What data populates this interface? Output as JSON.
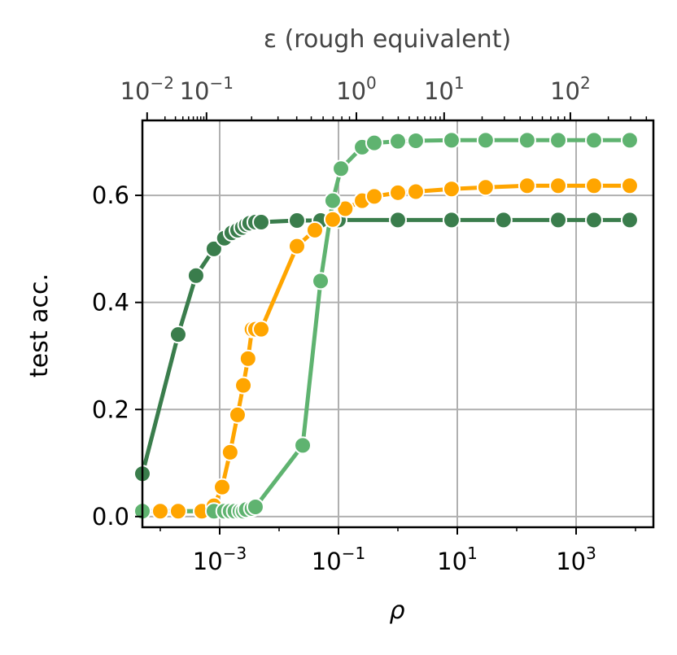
{
  "chart_data": {
    "type": "line",
    "xlabel": "ρ",
    "ylabel": "test acc.",
    "x_scale": "log",
    "xlim": [
      5e-05,
      20000
    ],
    "ylim": [
      -0.02,
      0.74
    ],
    "grid": true,
    "x_ticks": [
      {
        "value": 0.001,
        "base": "10",
        "exp": "−3"
      },
      {
        "value": 0.1,
        "base": "10",
        "exp": "−1"
      },
      {
        "value": 10,
        "base": "10",
        "exp": "1"
      },
      {
        "value": 1000,
        "base": "10",
        "exp": "3"
      }
    ],
    "y_ticks": [
      {
        "value": 0.0,
        "label": "0.0"
      },
      {
        "value": 0.2,
        "label": "0.2"
      },
      {
        "value": 0.4,
        "label": "0.4"
      },
      {
        "value": 0.6,
        "label": "0.6"
      }
    ],
    "top_axis": {
      "label": "ε (rough equivalent)",
      "color": "#444444",
      "ticks": [
        {
          "rho": 6e-05,
          "base": "10",
          "exp": "−2"
        },
        {
          "rho": 0.0006,
          "base": "10",
          "exp": "−1"
        },
        {
          "rho": 0.2,
          "base": "10",
          "exp": "0"
        },
        {
          "rho": 6,
          "base": "10",
          "exp": "1"
        },
        {
          "rho": 800,
          "base": "10",
          "exp": "2"
        }
      ]
    },
    "series": [
      {
        "color": "#3a7d4c",
        "x": [
          5e-05,
          0.0002,
          0.0004,
          0.0008,
          0.0012,
          0.0016,
          0.002,
          0.0024,
          0.0028,
          0.0032,
          0.004,
          0.005,
          0.02,
          0.05,
          0.1,
          1,
          8,
          60,
          500,
          2000,
          8000
        ],
        "y": [
          0.08,
          0.34,
          0.45,
          0.5,
          0.52,
          0.53,
          0.535,
          0.54,
          0.545,
          0.548,
          0.55,
          0.55,
          0.553,
          0.553,
          0.554,
          0.554,
          0.554,
          0.554,
          0.554,
          0.554,
          0.554
        ]
      },
      {
        "color": "#ffa500",
        "x": [
          5e-05,
          0.0001,
          0.0002,
          0.0005,
          0.0008,
          0.0011,
          0.0015,
          0.002,
          0.0025,
          0.003,
          0.0035,
          0.004,
          0.005,
          0.02,
          0.04,
          0.08,
          0.13,
          0.25,
          0.4,
          1,
          2,
          8,
          30,
          150,
          500,
          2000,
          8000
        ],
        "y": [
          0.01,
          0.01,
          0.01,
          0.01,
          0.02,
          0.055,
          0.12,
          0.19,
          0.245,
          0.295,
          0.35,
          0.35,
          0.35,
          0.505,
          0.535,
          0.555,
          0.575,
          0.59,
          0.598,
          0.605,
          0.607,
          0.612,
          0.615,
          0.618,
          0.618,
          0.618,
          0.618
        ]
      },
      {
        "color": "#5fb370",
        "x": [
          5e-05,
          0.0008,
          0.0012,
          0.0015,
          0.0018,
          0.0022,
          0.0025,
          0.0028,
          0.0035,
          0.004,
          0.025,
          0.05,
          0.08,
          0.11,
          0.25,
          0.4,
          1,
          2,
          8,
          30,
          150,
          500,
          2000,
          8000
        ],
        "y": [
          0.01,
          0.01,
          0.01,
          0.01,
          0.01,
          0.01,
          0.01,
          0.013,
          0.015,
          0.018,
          0.133,
          0.44,
          0.59,
          0.65,
          0.69,
          0.698,
          0.701,
          0.702,
          0.703,
          0.703,
          0.703,
          0.703,
          0.703,
          0.703
        ]
      }
    ]
  }
}
